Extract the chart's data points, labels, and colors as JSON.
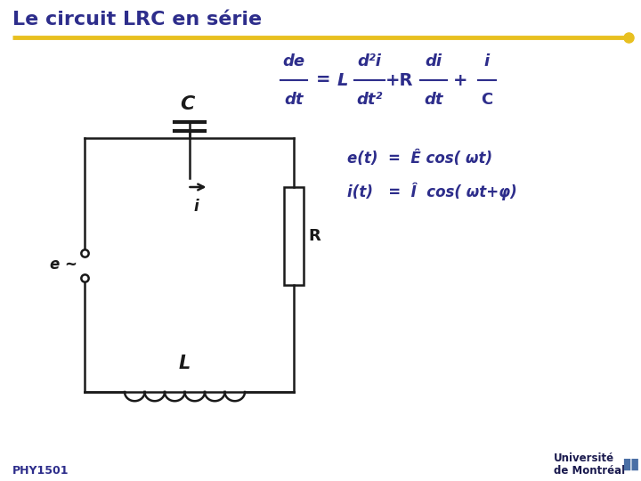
{
  "title": "Le circuit LRC en série",
  "title_color": "#2d2d8b",
  "title_fontsize": 16,
  "gold_line_color": "#E8C020",
  "bg_color": "#FFFFFF",
  "dark_blue": "#2d2d8b",
  "circuit_color": "#1a1a1a",
  "footer_text": "PHY1501",
  "footer_color": "#2d2d8b",
  "univ_text1": "Université",
  "univ_text2": "de Montréal"
}
